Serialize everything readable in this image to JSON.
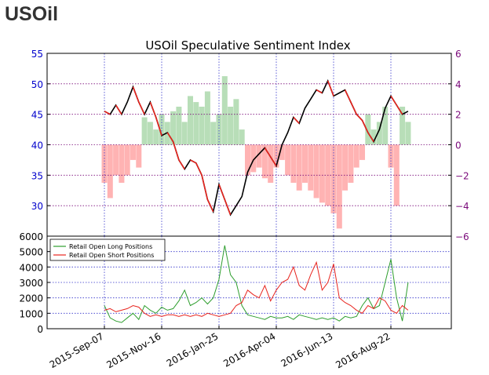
{
  "page": {
    "title": "USOil"
  },
  "chart_data": [
    {
      "type": "candlestick+bar",
      "title": "USOil Speculative Sentiment Index",
      "ylim": [
        25,
        55
      ],
      "y_ticks": [
        "30",
        "35",
        "40",
        "45",
        "50",
        "55"
      ],
      "y2lim": [
        -6,
        6
      ],
      "y2_ticks": [
        "−6",
        "−4",
        "−2",
        "0",
        "2",
        "4",
        "6"
      ],
      "x_tick_labels": [
        "2015-Sep-07",
        "2015-Nov-16",
        "2016-Jan-25",
        "2016-Apr-04",
        "2016-Jun-13",
        "2016-Aug-22"
      ],
      "grid": true,
      "colors": {
        "long": "#2e9e2e",
        "short": "#e8241e",
        "bar_pos": "#b8deb8",
        "bar_neg": "#ffb3b3",
        "price": "#000000",
        "left_axis": "#0000cc",
        "right_axis": "#7a0a7a"
      },
      "price": {
        "x": [
          "2015-09-07",
          "2015-09-14",
          "2015-09-21",
          "2015-09-28",
          "2015-10-05",
          "2015-10-12",
          "2015-10-19",
          "2015-10-26",
          "2015-11-02",
          "2015-11-09",
          "2015-11-16",
          "2015-11-23",
          "2015-11-30",
          "2015-12-07",
          "2015-12-14",
          "2015-12-21",
          "2015-12-28",
          "2016-01-04",
          "2016-01-11",
          "2016-01-18",
          "2016-01-25",
          "2016-02-01",
          "2016-02-08",
          "2016-02-15",
          "2016-02-22",
          "2016-02-29",
          "2016-03-07",
          "2016-03-14",
          "2016-03-21",
          "2016-03-28",
          "2016-04-04",
          "2016-04-11",
          "2016-04-18",
          "2016-04-25",
          "2016-05-02",
          "2016-05-09",
          "2016-05-16",
          "2016-05-23",
          "2016-05-30",
          "2016-06-06",
          "2016-06-13",
          "2016-06-20",
          "2016-06-27",
          "2016-07-04",
          "2016-07-11",
          "2016-07-18",
          "2016-07-25",
          "2016-08-01",
          "2016-08-08",
          "2016-08-15",
          "2016-08-22",
          "2016-08-29",
          "2016-09-05",
          "2016-09-12"
        ],
        "values": [
          45.5,
          45.0,
          46.5,
          45.0,
          47.0,
          49.5,
          47.0,
          45.0,
          47.0,
          44.5,
          41.5,
          42.0,
          40.5,
          37.5,
          36.0,
          37.5,
          37.0,
          35.0,
          31.0,
          29.0,
          33.5,
          31.0,
          28.5,
          30.0,
          31.5,
          35.5,
          37.5,
          38.5,
          39.5,
          38.0,
          36.5,
          40.0,
          42.0,
          44.5,
          43.5,
          46.0,
          47.5,
          49.0,
          48.5,
          50.5,
          48.0,
          48.5,
          49.0,
          47.0,
          45.0,
          44.0,
          42.0,
          40.5,
          42.5,
          46.0,
          48.0,
          46.5,
          45.0,
          45.5
        ]
      },
      "ssi": {
        "x": [
          "2015-09-07",
          "2015-09-14",
          "2015-09-21",
          "2015-09-28",
          "2015-10-05",
          "2015-10-12",
          "2015-10-19",
          "2015-10-26",
          "2015-11-02",
          "2015-11-09",
          "2015-11-16",
          "2015-11-23",
          "2015-11-30",
          "2015-12-07",
          "2015-12-14",
          "2015-12-21",
          "2015-12-28",
          "2016-01-04",
          "2016-01-11",
          "2016-01-18",
          "2016-01-25",
          "2016-02-01",
          "2016-02-08",
          "2016-02-15",
          "2016-02-22",
          "2016-02-29",
          "2016-03-07",
          "2016-03-14",
          "2016-03-21",
          "2016-03-28",
          "2016-04-04",
          "2016-04-11",
          "2016-04-18",
          "2016-04-25",
          "2016-05-02",
          "2016-05-09",
          "2016-05-16",
          "2016-05-23",
          "2016-05-30",
          "2016-06-06",
          "2016-06-13",
          "2016-06-20",
          "2016-06-27",
          "2016-07-04",
          "2016-07-11",
          "2016-07-18",
          "2016-07-25",
          "2016-08-01",
          "2016-08-08",
          "2016-08-15",
          "2016-08-22",
          "2016-08-29",
          "2016-09-05",
          "2016-09-12"
        ],
        "values": [
          -2.5,
          -3.5,
          -2.0,
          -2.5,
          -2.0,
          -1.0,
          -1.5,
          1.8,
          1.5,
          1.0,
          2.0,
          1.5,
          2.2,
          2.5,
          1.5,
          3.2,
          2.8,
          2.5,
          3.5,
          1.5,
          2.0,
          4.5,
          2.5,
          3.0,
          1.0,
          -2.0,
          -1.8,
          -1.5,
          -2.2,
          -2.5,
          -1.5,
          -1.0,
          -2.0,
          -2.5,
          -3.0,
          -2.5,
          -3.0,
          -3.5,
          -3.8,
          -4.0,
          -4.5,
          -5.5,
          -3.0,
          -2.5,
          -1.5,
          -1.0,
          2.0,
          1.0,
          1.5,
          2.5,
          -1.5,
          -4.0,
          2.5,
          1.5
        ]
      }
    },
    {
      "type": "line",
      "ylim": [
        0,
        6000
      ],
      "y_ticks": [
        "0",
        "1000",
        "2000",
        "3000",
        "4000",
        "5000",
        "6000"
      ],
      "x_tick_labels": [
        "2015-Sep-07",
        "2015-Nov-16",
        "2016-Jan-25",
        "2016-Apr-04",
        "2016-Jun-13",
        "2016-Aug-22"
      ],
      "legend": {
        "position": "top-left",
        "entries": [
          "Retail Open Long Positions",
          "Retail Open Short Positions"
        ]
      },
      "series": [
        {
          "name": "Retail Open Long Positions",
          "x": [
            "2015-09-07",
            "2015-09-14",
            "2015-09-21",
            "2015-09-28",
            "2015-10-05",
            "2015-10-12",
            "2015-10-19",
            "2015-10-26",
            "2015-11-02",
            "2015-11-09",
            "2015-11-16",
            "2015-11-23",
            "2015-11-30",
            "2015-12-07",
            "2015-12-14",
            "2015-12-21",
            "2015-12-28",
            "2016-01-04",
            "2016-01-11",
            "2016-01-18",
            "2016-01-25",
            "2016-02-01",
            "2016-02-08",
            "2016-02-15",
            "2016-02-22",
            "2016-02-29",
            "2016-03-07",
            "2016-03-14",
            "2016-03-21",
            "2016-03-28",
            "2016-04-04",
            "2016-04-11",
            "2016-04-18",
            "2016-04-25",
            "2016-05-02",
            "2016-05-09",
            "2016-05-16",
            "2016-05-23",
            "2016-05-30",
            "2016-06-06",
            "2016-06-13",
            "2016-06-20",
            "2016-06-27",
            "2016-07-04",
            "2016-07-11",
            "2016-07-18",
            "2016-07-25",
            "2016-08-01",
            "2016-08-08",
            "2016-08-15",
            "2016-08-22",
            "2016-08-29",
            "2016-09-05",
            "2016-09-12"
          ],
          "values": [
            1500,
            700,
            500,
            400,
            700,
            1000,
            600,
            1500,
            1200,
            1000,
            1400,
            1200,
            1300,
            1800,
            2500,
            1500,
            1700,
            2000,
            1600,
            2000,
            3200,
            5400,
            3500,
            3000,
            1500,
            900,
            800,
            700,
            600,
            800,
            700,
            700,
            800,
            600,
            900,
            800,
            700,
            600,
            700,
            600,
            700,
            500,
            800,
            700,
            800,
            1500,
            2000,
            1300,
            1500,
            3000,
            4500,
            2000,
            500,
            3000
          ]
        },
        {
          "name": "Retail Open Short Positions",
          "x": [
            "2015-09-07",
            "2015-09-14",
            "2015-09-21",
            "2015-09-28",
            "2015-10-05",
            "2015-10-12",
            "2015-10-19",
            "2015-10-26",
            "2015-11-02",
            "2015-11-09",
            "2015-11-16",
            "2015-11-23",
            "2015-11-30",
            "2015-12-07",
            "2015-12-14",
            "2015-12-21",
            "2015-12-28",
            "2016-01-04",
            "2016-01-11",
            "2016-01-18",
            "2016-01-25",
            "2016-02-01",
            "2016-02-08",
            "2016-02-15",
            "2016-02-22",
            "2016-02-29",
            "2016-03-07",
            "2016-03-14",
            "2016-03-21",
            "2016-03-28",
            "2016-04-04",
            "2016-04-11",
            "2016-04-18",
            "2016-04-25",
            "2016-05-02",
            "2016-05-09",
            "2016-05-16",
            "2016-05-23",
            "2016-05-30",
            "2016-06-06",
            "2016-06-13",
            "2016-06-20",
            "2016-06-27",
            "2016-07-04",
            "2016-07-11",
            "2016-07-18",
            "2016-07-25",
            "2016-08-01",
            "2016-08-08",
            "2016-08-15",
            "2016-08-22",
            "2016-08-29",
            "2016-09-05",
            "2016-09-12"
          ],
          "values": [
            1200,
            1300,
            1100,
            1200,
            1300,
            1500,
            1400,
            1000,
            800,
            900,
            800,
            900,
            900,
            800,
            900,
            800,
            900,
            800,
            1000,
            900,
            800,
            900,
            1000,
            1500,
            1700,
            2500,
            2200,
            2000,
            2800,
            1800,
            2500,
            3000,
            3200,
            4000,
            2800,
            2500,
            3500,
            4300,
            2500,
            3000,
            4200,
            2000,
            1700,
            1500,
            1200,
            1000,
            1500,
            1300,
            2000,
            1800,
            1200,
            1000,
            1500,
            1200
          ]
        }
      ]
    }
  ]
}
